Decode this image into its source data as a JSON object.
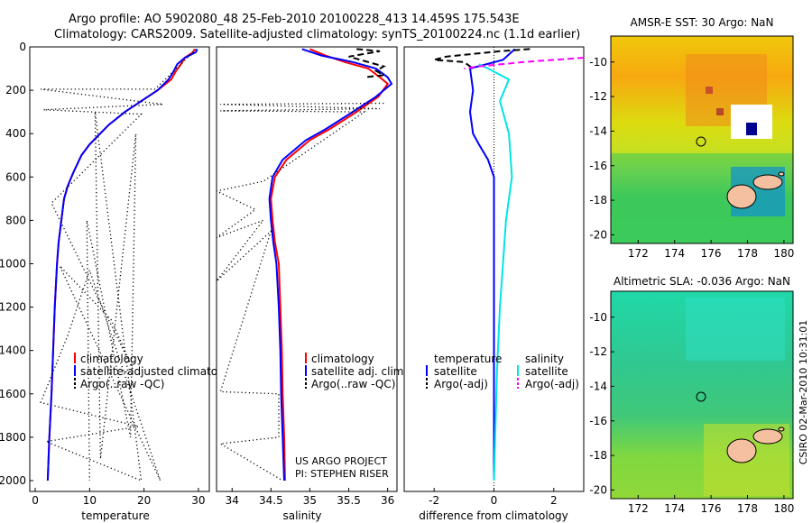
{
  "title_line1": "Argo profile: AO 5902080_48 25-Feb-2010 20100228_413 14.459S 175.543E",
  "title_line2": "Climatology: CARS2009. Satellite-adjusted climatology: synTS_20100224.nc (1.1d earlier)",
  "credit_line1": "US ARGO PROJECT",
  "credit_line2": "PI: STEPHEN RISER",
  "side_stamp": "CSIRO 02-Mar-2010 10:31:01",
  "colors": {
    "climatology": "#ff0000",
    "satellite": "#0000ff",
    "argo": "#000000",
    "sat_salinity": "#00e5e5",
    "argo_salinity": "#ff00ff"
  },
  "chart_data": [
    {
      "type": "line",
      "id": "temperature",
      "xlabel": "temperature",
      "ylabel": "",
      "xlim": [
        -1,
        32
      ],
      "ylim": [
        2050,
        0
      ],
      "y_reversed": true,
      "xticks": [
        0,
        10,
        20,
        30
      ],
      "yticks": [
        0,
        200,
        400,
        600,
        800,
        1000,
        1200,
        1400,
        1600,
        1800,
        2000
      ],
      "legend": [
        "climatology",
        "satellite-adjusted climatology",
        "Argo(..raw -QC)"
      ],
      "series": [
        {
          "name": "climatology",
          "color": "#ff0000",
          "style": "solid",
          "points": [
            [
              29.3,
              10
            ],
            [
              29,
              25
            ],
            [
              27.5,
              50
            ],
            [
              26.8,
              80
            ],
            [
              25.9,
              110
            ],
            [
              25,
              150
            ],
            [
              22.5,
              200
            ],
            [
              19.5,
              250
            ],
            [
              16.5,
              300
            ],
            [
              13.5,
              360
            ],
            [
              10,
              450
            ],
            [
              8.5,
              500
            ],
            [
              7,
              580
            ],
            [
              6,
              640
            ],
            [
              5.3,
              700
            ],
            [
              4.8,
              800
            ],
            [
              4.3,
              900
            ],
            [
              4.0,
              1000
            ],
            [
              3.6,
              1200
            ],
            [
              3.3,
              1400
            ],
            [
              3.0,
              1600
            ],
            [
              2.6,
              1800
            ],
            [
              2.3,
              2000
            ]
          ]
        },
        {
          "name": "satellite-adjusted climatology",
          "color": "#0000ff",
          "style": "solid",
          "points": [
            [
              29.8,
              10
            ],
            [
              29.5,
              25
            ],
            [
              27.5,
              50
            ],
            [
              26.1,
              80
            ],
            [
              25.5,
              110
            ],
            [
              24.5,
              150
            ],
            [
              22.5,
              200
            ],
            [
              19.5,
              250
            ],
            [
              16.5,
              300
            ],
            [
              13.5,
              360
            ],
            [
              10,
              450
            ],
            [
              8.5,
              500
            ],
            [
              7,
              580
            ],
            [
              6,
              640
            ],
            [
              5.3,
              700
            ],
            [
              4.8,
              800
            ],
            [
              4.3,
              900
            ],
            [
              4.0,
              1000
            ],
            [
              3.6,
              1200
            ],
            [
              3.3,
              1400
            ],
            [
              3.0,
              1600
            ],
            [
              2.6,
              1800
            ],
            [
              2.3,
              2000
            ]
          ]
        },
        {
          "name": "Argo(..raw -QC)",
          "color": "#000000",
          "style": "dotted",
          "points": [
            [
              29.5,
              10
            ],
            [
              28.8,
              30
            ],
            [
              27.2,
              70
            ],
            [
              22,
              195
            ],
            [
              1,
              195
            ],
            [
              23.5,
              265
            ],
            [
              1.5,
              290
            ],
            [
              19.5,
              310
            ],
            [
              3,
              720
            ],
            [
              18,
              1490
            ],
            [
              14,
              1260
            ],
            [
              4.5,
              1010
            ],
            [
              23,
              2000
            ],
            [
              10,
              1030
            ],
            [
              6,
              1330
            ],
            [
              1,
              1640
            ],
            [
              19,
              1750
            ],
            [
              2,
              1820
            ],
            [
              19.5,
              2000
            ],
            [
              11,
              300
            ],
            [
              12,
              1900
            ],
            [
              18.5,
              400
            ],
            [
              17.5,
              1800
            ],
            [
              9.5,
              800
            ],
            [
              10,
              2000
            ]
          ]
        }
      ]
    },
    {
      "type": "line",
      "id": "salinity",
      "xlabel": "salinity",
      "ylabel": "",
      "xlim": [
        33.8,
        36.12
      ],
      "ylim": [
        2050,
        0
      ],
      "y_reversed": true,
      "xticks": [
        34,
        34.5,
        35,
        35.5,
        36
      ],
      "legend": [
        "climatology",
        "satellite adj. clim.",
        "Argo(..raw -QC)"
      ],
      "series": [
        {
          "name": "climatology",
          "color": "#ff0000",
          "style": "solid",
          "points": [
            [
              35.0,
              10
            ],
            [
              35.2,
              40
            ],
            [
              35.45,
              70
            ],
            [
              35.75,
              100
            ],
            [
              35.9,
              140
            ],
            [
              36.0,
              170
            ],
            [
              35.88,
              230
            ],
            [
              35.6,
              300
            ],
            [
              35.25,
              380
            ],
            [
              35.0,
              430
            ],
            [
              34.7,
              520
            ],
            [
              34.55,
              600
            ],
            [
              34.5,
              700
            ],
            [
              34.52,
              800
            ],
            [
              34.55,
              900
            ],
            [
              34.6,
              1000
            ],
            [
              34.62,
              1200
            ],
            [
              34.64,
              1400
            ],
            [
              34.65,
              1600
            ],
            [
              34.67,
              1800
            ],
            [
              34.68,
              2000
            ]
          ]
        },
        {
          "name": "satellite adj. clim.",
          "color": "#0000ff",
          "style": "solid",
          "points": [
            [
              34.9,
              10
            ],
            [
              35.15,
              40
            ],
            [
              35.55,
              70
            ],
            [
              35.85,
              100
            ],
            [
              36.0,
              140
            ],
            [
              36.05,
              170
            ],
            [
              35.85,
              230
            ],
            [
              35.55,
              300
            ],
            [
              35.2,
              380
            ],
            [
              34.95,
              430
            ],
            [
              34.65,
              520
            ],
            [
              34.52,
              600
            ],
            [
              34.48,
              700
            ],
            [
              34.5,
              800
            ],
            [
              34.53,
              900
            ],
            [
              34.57,
              1000
            ],
            [
              34.6,
              1200
            ],
            [
              34.62,
              1400
            ],
            [
              34.63,
              1600
            ],
            [
              34.65,
              1800
            ],
            [
              34.67,
              2000
            ]
          ]
        },
        {
          "name": "Argo(..raw -QC)",
          "color": "#000000",
          "style": "dotted",
          "points": [
            [
              35.95,
              260
            ],
            [
              33.85,
              265
            ],
            [
              35.9,
              285
            ],
            [
              33.85,
              295
            ],
            [
              35.7,
              300
            ],
            [
              34.4,
              620
            ],
            [
              33.8,
              665
            ],
            [
              34.3,
              750
            ],
            [
              33.8,
              880
            ],
            [
              34.4,
              800
            ],
            [
              33.8,
              1080
            ],
            [
              34.5,
              850
            ],
            [
              33.85,
              1590
            ],
            [
              34.6,
              1600
            ],
            [
              34.6,
              1800
            ],
            [
              33.85,
              1830
            ],
            [
              34.65,
              2000
            ]
          ]
        },
        {
          "name": "Argo(..raw -QC) dashed",
          "color": "#000000",
          "style": "dashed",
          "points": [
            [
              35.6,
              10
            ],
            [
              35.9,
              20
            ],
            [
              35.5,
              45
            ],
            [
              35.95,
              90
            ],
            [
              35.85,
              110
            ],
            [
              35.95,
              130
            ],
            [
              35.7,
              140
            ]
          ]
        }
      ]
    },
    {
      "type": "line",
      "id": "difference",
      "xlabel": "difference from climatology",
      "ylabel": "",
      "xlim": [
        -3,
        3
      ],
      "ylim": [
        2050,
        0
      ],
      "y_reversed": true,
      "xticks": [
        -2,
        0,
        2
      ],
      "legend_headers": [
        "temperature",
        "salinity"
      ],
      "legend": [
        "satellite",
        "Argo(-adj)",
        "satellite",
        "Argo(-adj)"
      ],
      "series": [
        {
          "name": "temperature satellite",
          "color": "#0000ff",
          "style": "solid",
          "points": [
            [
              0.7,
              10
            ],
            [
              0.3,
              60
            ],
            [
              -0.8,
              100
            ],
            [
              -0.7,
              200
            ],
            [
              -0.8,
              300
            ],
            [
              -0.7,
              400
            ],
            [
              -0.5,
              450
            ],
            [
              -0.2,
              520
            ],
            [
              0,
              600
            ],
            [
              0,
              800
            ],
            [
              0,
              1000
            ],
            [
              0,
              1500
            ],
            [
              0,
              2000
            ]
          ]
        },
        {
          "name": "temperature Argo(-adj)",
          "color": "#000000",
          "style": "dashed",
          "points": [
            [
              1.2,
              10
            ],
            [
              0.2,
              20
            ],
            [
              -1.6,
              45
            ],
            [
              -2.0,
              60
            ],
            [
              -1.0,
              70
            ],
            [
              -0.7,
              100
            ]
          ]
        },
        {
          "name": "salinity satellite",
          "color": "#00e5e5",
          "style": "solid",
          "points": [
            [
              -0.5,
              80
            ],
            [
              -0.2,
              100
            ],
            [
              0.5,
              150
            ],
            [
              0.2,
              250
            ],
            [
              0.5,
              400
            ],
            [
              0.6,
              600
            ],
            [
              0.4,
              800
            ],
            [
              0.3,
              1000
            ],
            [
              0.2,
              1200
            ],
            [
              0.1,
              1500
            ],
            [
              0,
              2000
            ]
          ]
        },
        {
          "name": "salinity Argo(-adj)",
          "color": "#ff00ff",
          "style": "dashed",
          "points": [
            [
              3,
              50
            ],
            [
              2.5,
              55
            ],
            [
              1.0,
              70
            ],
            [
              -0.5,
              90
            ],
            [
              -1.0,
              100
            ]
          ]
        }
      ]
    },
    {
      "type": "heatmap",
      "id": "sst_map",
      "title": "AMSR-E SST: 30 Argo: NaN",
      "xlim": [
        170.5,
        180.5
      ],
      "ylim": [
        -20.5,
        -8.5
      ],
      "xticks": [
        172,
        174,
        176,
        178,
        180
      ],
      "yticks": [
        -10,
        -12,
        -14,
        -16,
        -18,
        -20
      ],
      "argo_position": [
        175.5,
        -14.5
      ]
    },
    {
      "type": "heatmap",
      "id": "sla_map",
      "title": "Altimetric SLA: -0.036 Argo: NaN",
      "xlim": [
        170.5,
        180.5
      ],
      "ylim": [
        -20.5,
        -8.5
      ],
      "xticks": [
        172,
        174,
        176,
        178,
        180
      ],
      "yticks": [
        -10,
        -12,
        -14,
        -16,
        -18,
        -20
      ],
      "argo_position": [
        175.5,
        -14.5
      ]
    }
  ]
}
